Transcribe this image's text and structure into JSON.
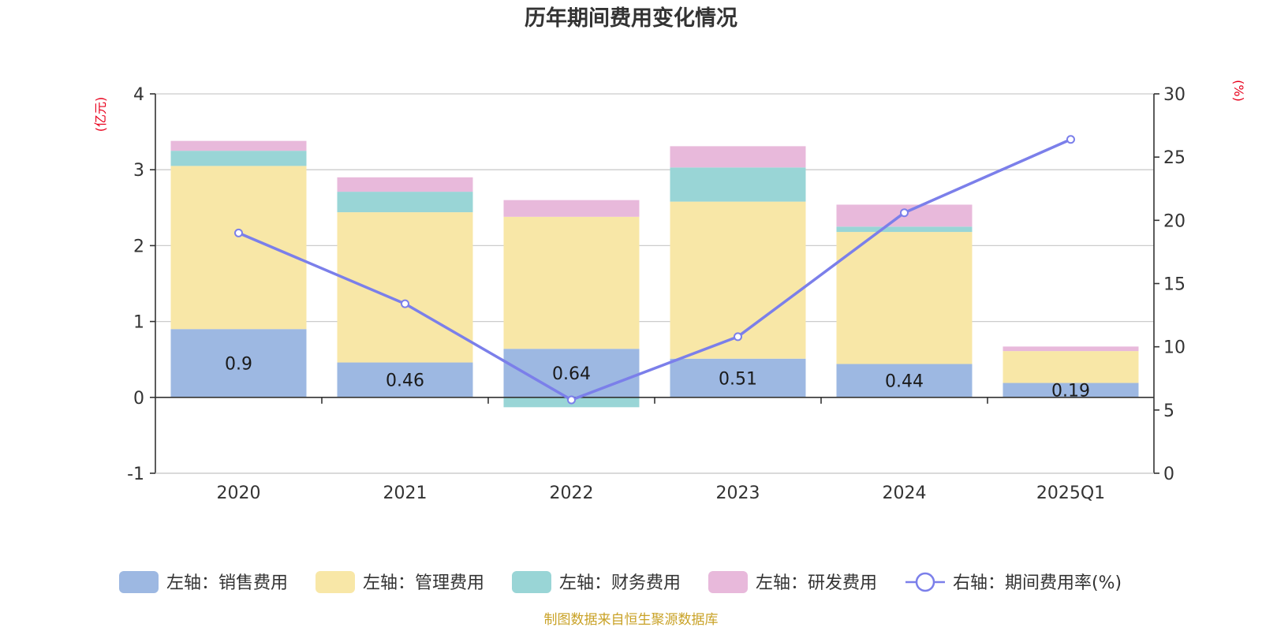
{
  "chart_data": {
    "type": "bar",
    "title": "历年期间费用变化情况",
    "categories": [
      "2020",
      "2021",
      "2022",
      "2023",
      "2024",
      "2025Q1"
    ],
    "left_axis": {
      "unit_label": "(亿元)",
      "range": [
        -1,
        4
      ],
      "ticks": [
        -1,
        0,
        1,
        2,
        3,
        4
      ]
    },
    "right_axis": {
      "unit_label": "(%)",
      "range": [
        0,
        30
      ],
      "ticks": [
        0,
        5,
        10,
        15,
        20,
        25,
        30
      ]
    },
    "series": [
      {
        "name": "左轴：销售费用",
        "type": "bar",
        "axis": "left",
        "color": "#9db8e2",
        "values": [
          0.9,
          0.46,
          0.64,
          0.51,
          0.44,
          0.19
        ],
        "labels": [
          "0.9",
          "0.46",
          "0.64",
          "0.51",
          "0.44",
          "0.19"
        ]
      },
      {
        "name": "左轴：管理费用",
        "type": "bar",
        "axis": "left",
        "color": "#f8e7a7",
        "values": [
          2.15,
          1.98,
          1.74,
          2.07,
          1.74,
          0.42
        ]
      },
      {
        "name": "左轴：财务费用",
        "type": "bar",
        "axis": "left",
        "color": "#99d5d6",
        "values": [
          0.2,
          0.27,
          -0.13,
          0.45,
          0.07,
          0.0
        ]
      },
      {
        "name": "左轴：研发费用",
        "type": "bar",
        "axis": "left",
        "color": "#e8b9db",
        "values": [
          0.13,
          0.19,
          0.22,
          0.28,
          0.29,
          0.06
        ]
      },
      {
        "name": "右轴：期间费用率(%)",
        "type": "line",
        "axis": "right",
        "color": "#7b7fea",
        "values": [
          19.0,
          13.4,
          5.8,
          10.8,
          20.6,
          26.4
        ]
      }
    ],
    "source": "制图数据来自恒生聚源数据库"
  }
}
